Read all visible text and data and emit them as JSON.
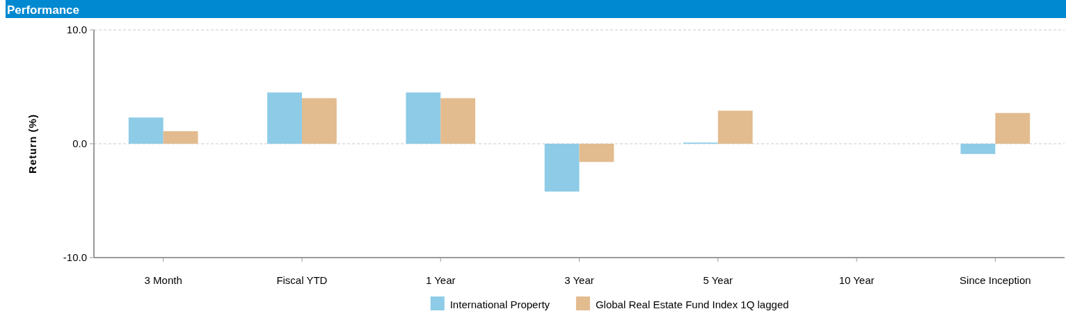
{
  "chart_data": {
    "type": "bar",
    "title": "Performance",
    "ylabel": "Return (%)",
    "categories": [
      "3 Month",
      "Fiscal YTD",
      "1 Year",
      "3 Year",
      "5 Year",
      "10 Year",
      "Since Inception"
    ],
    "series": [
      {
        "name": "International Property",
        "color": "#8dcbe6",
        "values": [
          2.3,
          4.5,
          4.5,
          -4.2,
          0.1,
          null,
          -0.9
        ]
      },
      {
        "name": "Global Real Estate Fund Index 1Q lagged",
        "color": "#e2bb8f",
        "values": [
          1.1,
          4.0,
          4.0,
          -1.6,
          2.9,
          null,
          2.7
        ]
      }
    ],
    "ylim": [
      -10,
      10
    ],
    "yticks": [
      {
        "value": -10,
        "label": "-10.0"
      },
      {
        "value": 0,
        "label": "0.0"
      },
      {
        "value": 10,
        "label": "10.0"
      }
    ],
    "grid": "y",
    "legend": "bottom"
  }
}
